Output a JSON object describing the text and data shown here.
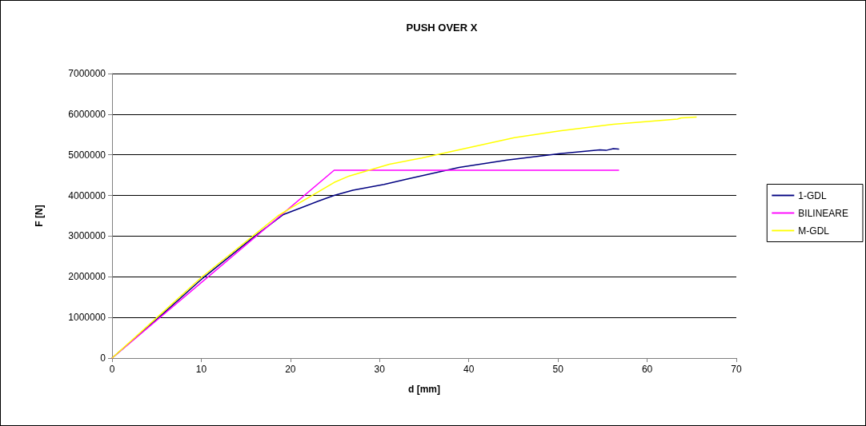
{
  "chart_data": {
    "type": "line",
    "title": "PUSH OVER X",
    "xlabel": "d [mm]",
    "ylabel": "F [N]",
    "xlim": [
      0,
      70
    ],
    "xticks": [
      0,
      10,
      20,
      30,
      40,
      50,
      60,
      70
    ],
    "ylim": [
      0,
      7000000
    ],
    "yticks": [
      0,
      1000000,
      2000000,
      3000000,
      4000000,
      5000000,
      6000000,
      7000000
    ],
    "grid": "y",
    "legend": "right",
    "marker": "none",
    "line_style": "solid",
    "series": [
      {
        "name": "1-GDL",
        "color": "#000080",
        "x": [
          0,
          5.2,
          10.2,
          15.9,
          19.2,
          21.6,
          23.1,
          24.9,
          27.0,
          30.5,
          33.2,
          38.9,
          44.3,
          50.2,
          54.7,
          55.4,
          56.2,
          56.8
        ],
        "values": [
          0,
          990000,
          1970000,
          2980000,
          3530000,
          3730000,
          3860000,
          4000000,
          4130000,
          4270000,
          4410000,
          4690000,
          4870000,
          5030000,
          5120000,
          5110000,
          5150000,
          5140000
        ]
      },
      {
        "name": "BILINEARE",
        "color": "#ff00ff",
        "x": [
          0,
          24.9,
          56.8
        ],
        "values": [
          0,
          4620000,
          4620000
        ]
      },
      {
        "name": "M-GDL",
        "color": "#ffff00",
        "x": [
          0,
          5.1,
          10.1,
          15.9,
          18.6,
          20.1,
          24.9,
          26.6,
          31.1,
          34.7,
          45.1,
          50.2,
          56.2,
          63.4,
          63.8,
          65.5
        ],
        "values": [
          0,
          1010000,
          2000000,
          3020000,
          3500000,
          3700000,
          4320000,
          4480000,
          4770000,
          4920000,
          5420000,
          5590000,
          5750000,
          5880000,
          5910000,
          5930000
        ]
      }
    ]
  }
}
